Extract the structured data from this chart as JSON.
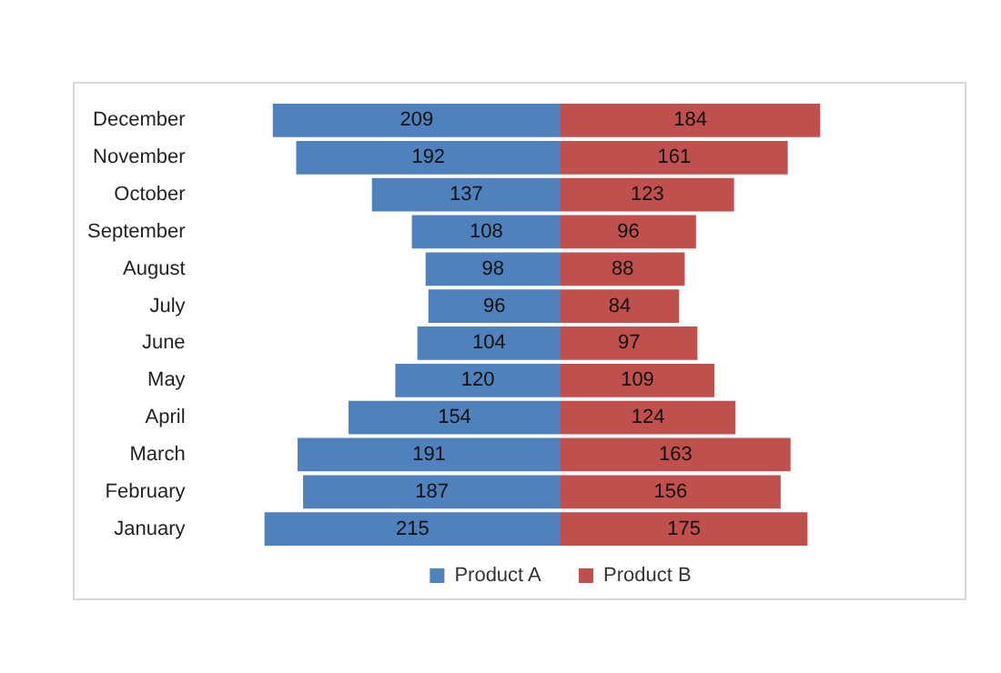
{
  "chart_data": [
    {
      "type": "bar",
      "orientation": "horizontal",
      "categories": [
        "December",
        "November",
        "October",
        "September",
        "August",
        "July",
        "June",
        "May",
        "April",
        "March",
        "February",
        "January"
      ],
      "series": [
        {
          "name": "Product A",
          "color": "#4f81bd",
          "values": [
            209,
            192,
            137,
            108,
            98,
            96,
            104,
            120,
            154,
            191,
            187,
            215
          ]
        }
      ],
      "tick_labels": "y",
      "data_labels": true,
      "legend": "bottom"
    },
    {
      "type": "bar",
      "orientation": "horizontal",
      "categories": [
        null,
        null,
        null,
        null,
        null,
        null,
        null,
        null,
        null,
        null,
        null,
        null
      ],
      "series": [
        {
          "name": "Product B",
          "color": "#c0504d",
          "values": [
            184,
            161,
            123,
            96,
            88,
            84,
            97,
            109,
            124,
            163,
            156,
            175
          ]
        }
      ],
      "tick_labels": false,
      "data_labels": true,
      "legend": "bottom"
    }
  ]
}
